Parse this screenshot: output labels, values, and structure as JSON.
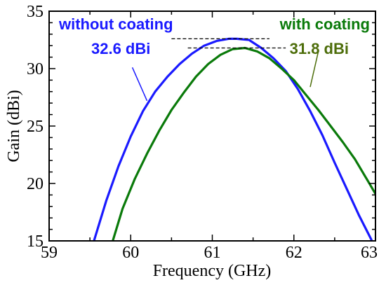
{
  "chart_data": {
    "type": "line",
    "title": "",
    "xlabel": "Frequency (GHz)",
    "ylabel": "Gain (dBi)",
    "xlim": [
      59,
      63
    ],
    "ylim": [
      15,
      35
    ],
    "xticks": [
      "59",
      "60",
      "61",
      "62",
      "63"
    ],
    "yticks": [
      "15",
      "20",
      "25",
      "30",
      "35"
    ],
    "grid": false,
    "series": [
      {
        "name": "without coating",
        "color": "#1a1aff",
        "x": [
          59.55,
          59.7,
          59.85,
          60.0,
          60.15,
          60.3,
          60.45,
          60.6,
          60.75,
          60.9,
          61.05,
          61.2,
          61.3,
          61.45,
          61.6,
          61.75,
          61.9,
          62.05,
          62.2,
          62.35,
          62.5,
          62.65,
          62.8,
          62.95
        ],
        "y": [
          15.0,
          18.5,
          21.5,
          24.1,
          26.3,
          28.0,
          29.3,
          30.4,
          31.3,
          32.0,
          32.4,
          32.6,
          32.6,
          32.5,
          31.8,
          30.9,
          29.8,
          28.2,
          26.3,
          24.2,
          21.8,
          19.5,
          17.2,
          15.1
        ]
      },
      {
        "name": "with coating",
        "color": "#0a7a0a",
        "x": [
          59.78,
          59.9,
          60.05,
          60.2,
          60.35,
          60.5,
          60.65,
          60.8,
          60.95,
          61.1,
          61.25,
          61.4,
          61.55,
          61.7,
          61.85,
          62.0,
          62.15,
          62.3,
          62.45,
          62.6,
          62.75,
          62.9,
          63.0
        ],
        "y": [
          15.0,
          17.8,
          20.4,
          22.6,
          24.6,
          26.4,
          27.9,
          29.3,
          30.4,
          31.2,
          31.7,
          31.8,
          31.5,
          30.9,
          30.0,
          29.0,
          27.7,
          26.4,
          25.0,
          23.6,
          22.1,
          20.3,
          19.1
        ]
      }
    ],
    "annotations": [
      {
        "text": "without coating",
        "color": "#1a1aff"
      },
      {
        "text": "32.6 dBi",
        "color": "#1a1aff"
      },
      {
        "text": "with coating",
        "color": "#0a7a0a"
      },
      {
        "text": "31.8 dBi",
        "color": "#4d6d0a"
      }
    ],
    "peak_refs": [
      {
        "x1": 60.5,
        "x2": 61.7,
        "y": 32.6
      },
      {
        "x1": 60.7,
        "x2": 61.9,
        "y": 31.8
      }
    ],
    "pointers": [
      {
        "from_x": 60.2,
        "from_y": 27.2,
        "to_x": 60.02,
        "to_y": 30.1
      },
      {
        "from_x": 62.2,
        "from_y": 28.4,
        "to_x": 62.3,
        "to_y": 31.5
      }
    ]
  }
}
